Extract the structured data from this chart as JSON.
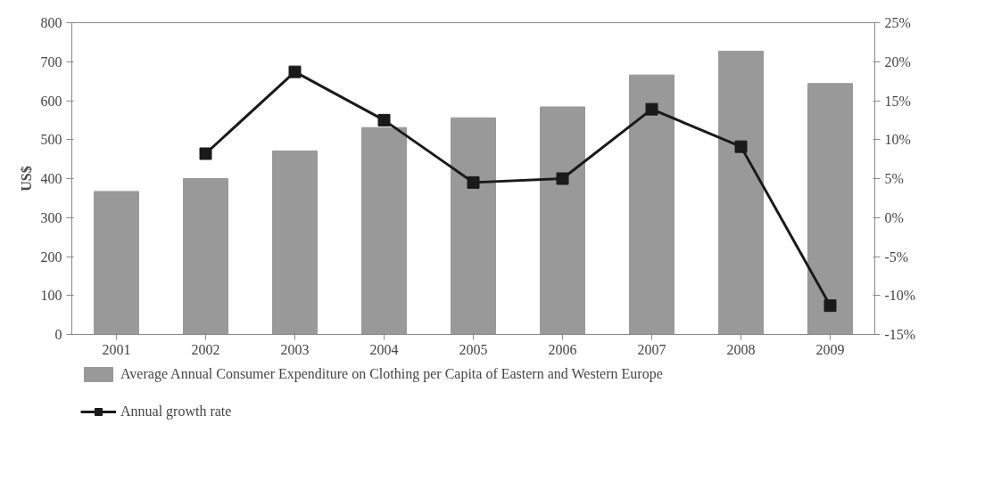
{
  "chart_data": {
    "type": "bar",
    "ylabel": "US$",
    "categories": [
      "2001",
      "2002",
      "2003",
      "2004",
      "2005",
      "2006",
      "2007",
      "2008",
      "2009"
    ],
    "series": [
      {
        "name": "Average Annual Consumer Expenditure on Clothing per Capita of Eastern and Western Europe",
        "color": "#999999",
        "values": [
          367,
          400,
          471,
          531,
          556,
          584,
          666,
          727,
          644
        ]
      },
      {
        "name": "Annual growth rate",
        "type": "line",
        "axis": "y2",
        "color": "#1a1a1a",
        "marker": "square",
        "values": [
          null,
          8.2,
          18.7,
          12.5,
          4.5,
          5.0,
          13.9,
          9.1,
          -11.3
        ]
      }
    ],
    "ylim": [
      0,
      800
    ],
    "yticks": [
      0,
      100,
      200,
      300,
      400,
      500,
      600,
      700,
      800
    ],
    "y2lim": [
      -15,
      25
    ],
    "y2ticks": [
      {
        "value": -15,
        "label": "-15%"
      },
      {
        "value": -10,
        "label": "-10%"
      },
      {
        "value": -5,
        "label": "-5%"
      },
      {
        "value": 0,
        "label": "0%"
      },
      {
        "value": 5,
        "label": "5%"
      },
      {
        "value": 10,
        "label": "10%"
      },
      {
        "value": 15,
        "label": "15%"
      },
      {
        "value": 20,
        "label": "20%"
      },
      {
        "value": 25,
        "label": "25%"
      }
    ],
    "grid": false,
    "legend": "bottom"
  }
}
